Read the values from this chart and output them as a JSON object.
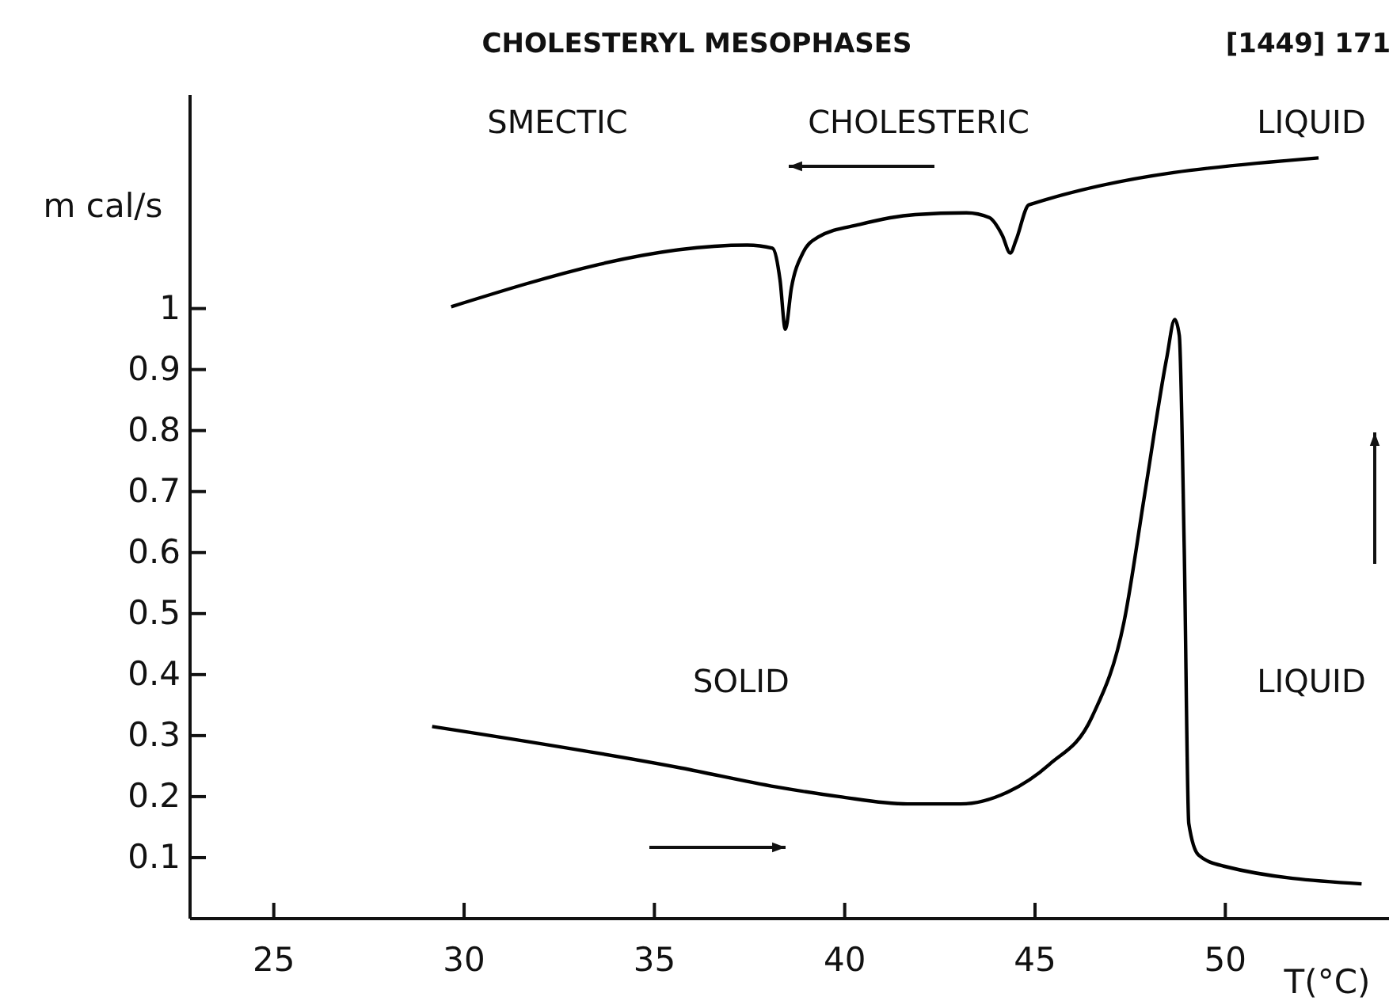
{
  "chart_data": {
    "type": "line",
    "title": "CHOLESTERYL MESOPHASES",
    "xlabel": "T(°C)",
    "ylabel": "m cal/s",
    "annotations": [
      "[1449] 171",
      "SMECTIC",
      "CHOLESTERIC",
      "LIQUID",
      "SOLID",
      "LIQUID"
    ],
    "xlim": [
      22.8,
      54.3
    ],
    "ylim": [
      0,
      1.35
    ],
    "xticks": [
      25,
      30,
      35,
      40,
      45,
      50
    ],
    "yticks": [
      0.1,
      0.2,
      0.3,
      0.4,
      0.5,
      0.6,
      0.7,
      0.8,
      0.9,
      1
    ],
    "grid": false,
    "marker": "none",
    "line_style": "solid",
    "series": [
      {
        "color": "#000000",
        "x": [
          29.66,
          37.44,
          38.1,
          38.3,
          38.44,
          38.6,
          38.9,
          39.3,
          40.4,
          41.85,
          43.2,
          43.8,
          44.14,
          44.35,
          44.5,
          44.84,
          52.45
        ],
        "values": [
          1.003,
          1.104,
          1.099,
          1.047,
          0.966,
          1.034,
          1.091,
          1.117,
          1.138,
          1.154,
          1.157,
          1.149,
          1.12,
          1.091,
          1.112,
          1.17,
          1.247
        ]
      },
      {
        "color": "#000000",
        "x": [
          29.16,
          35.7,
          38.2,
          39.85,
          41.64,
          43.05,
          44.3,
          45.38,
          46.5,
          47.34,
          47.88,
          48.46,
          48.67,
          48.79,
          48.92,
          49.04,
          49.3,
          49.96,
          53.58
        ],
        "values": [
          0.315,
          0.247,
          0.216,
          0.2,
          0.188,
          0.188,
          0.208,
          0.253,
          0.331,
          0.487,
          0.695,
          0.919,
          0.982,
          0.956,
          0.607,
          0.156,
          0.104,
          0.086,
          0.057
        ]
      }
    ]
  }
}
